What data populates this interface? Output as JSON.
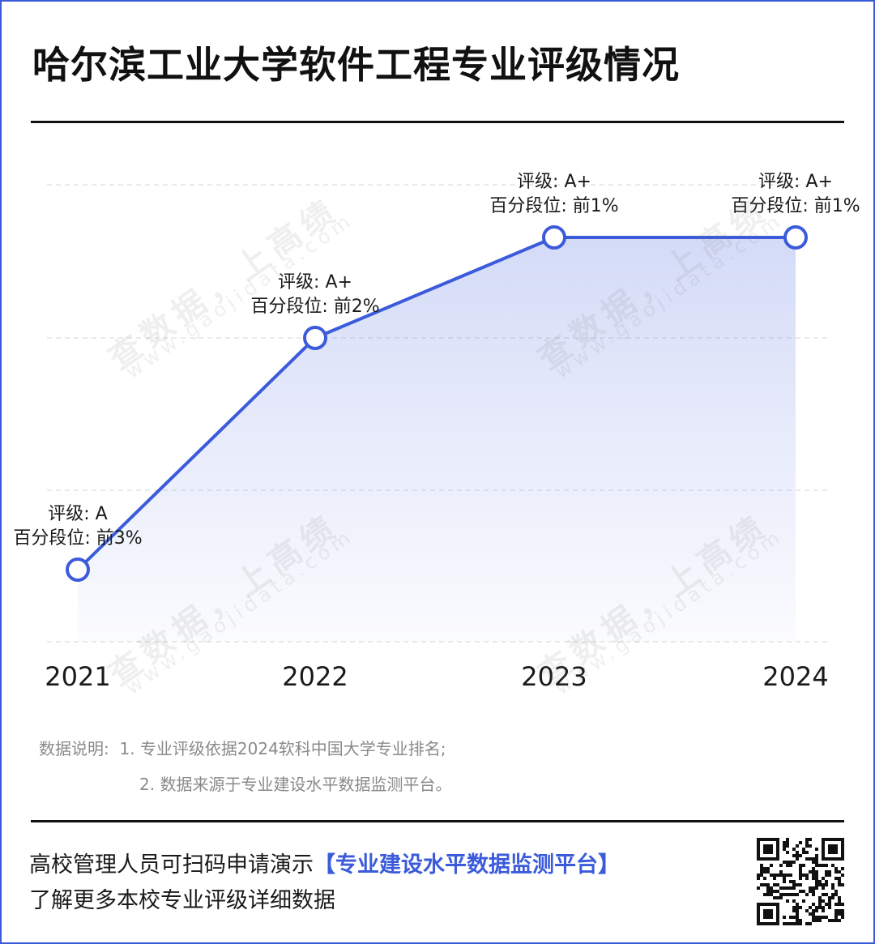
{
  "title": "哈尔滨工业大学软件工程专业评级情况",
  "chart_data": {
    "type": "area",
    "title": "哈尔滨工业大学软件工程专业评级情况",
    "xlabel": "",
    "ylabel": "",
    "categories": [
      "2021",
      "2022",
      "2023",
      "2024"
    ],
    "series": [
      {
        "percentile": [
          3,
          2,
          1,
          1
        ],
        "ratings": [
          "A",
          "A+",
          "A+",
          "A+"
        ]
      }
    ],
    "y_scale": "percentile rank, top = best",
    "grid": true,
    "legend": "none",
    "line_color": "#3b5bdb",
    "rating_prefix": "评级: ",
    "percentile_prefix": "百分段位: 前",
    "percentile_suffix": "%"
  },
  "notes": {
    "label": "数据说明:",
    "line1": "1. 专业评级依据2024软科中国大学专业排名;",
    "line2": "2. 数据来源于专业建设水平数据监测平台。"
  },
  "cta": {
    "line1_prefix": "高校管理人员可扫码申请演示",
    "line1_link": "【专业建设水平数据监测平台】",
    "line2": "了解更多本校专业评级详细数据"
  },
  "watermark": {
    "cn": "查数据，上高绩",
    "en": "www.gaojidata.com"
  },
  "colors": {
    "accent": "#3b5bdb",
    "text": "#1a1a1a",
    "muted": "#8a8a8a"
  },
  "icons": {
    "qr": "qr-code-icon"
  }
}
